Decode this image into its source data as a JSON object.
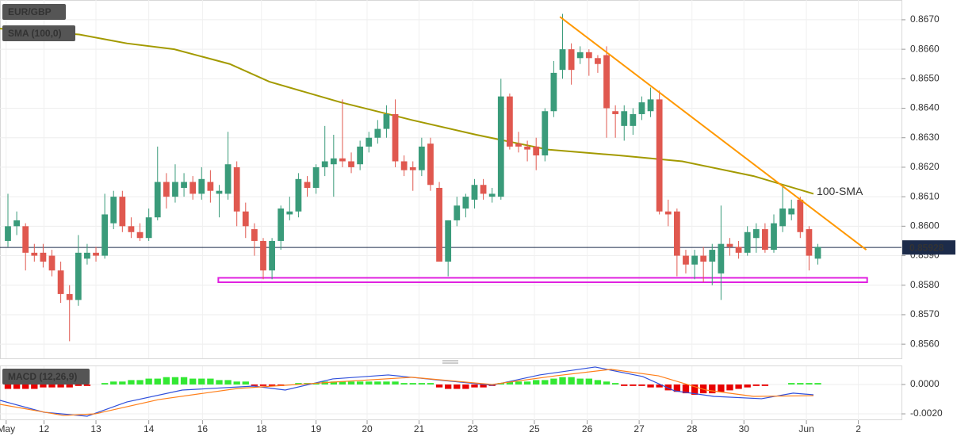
{
  "chart_data": [
    {
      "type": "candlestick",
      "title": "EUR/GBP",
      "indicator_label": "SMA (100,0)",
      "xlim": [
        -0.9,
        101.5
      ],
      "xticks": [
        {
          "value": -0.2,
          "label": "May"
        },
        {
          "value": 4.1,
          "label": "12"
        },
        {
          "value": 10.0,
          "label": "13"
        },
        {
          "value": 16.0,
          "label": "14"
        },
        {
          "value": 22.1,
          "label": "16"
        },
        {
          "value": 28.8,
          "label": "18"
        },
        {
          "value": 35.0,
          "label": "19"
        },
        {
          "value": 40.8,
          "label": "20"
        },
        {
          "value": 46.7,
          "label": "21"
        },
        {
          "value": 52.8,
          "label": "23"
        },
        {
          "value": 59.8,
          "label": "25"
        },
        {
          "value": 65.8,
          "label": "26"
        },
        {
          "value": 71.7,
          "label": "27"
        },
        {
          "value": 77.7,
          "label": "28"
        },
        {
          "value": 83.6,
          "label": "30"
        },
        {
          "value": 90.7,
          "label": "Jun"
        },
        {
          "value": 96.6,
          "label": "2"
        }
      ],
      "ylim": [
        0.85552,
        0.86767
      ],
      "yticks": [
        {
          "value": 0.856,
          "label": "0.8560"
        },
        {
          "value": 0.857,
          "label": "0.8570"
        },
        {
          "value": 0.858,
          "label": "0.8580"
        },
        {
          "value": 0.859,
          "label": "0.8590"
        },
        {
          "value": 0.86,
          "label": "0.8600"
        },
        {
          "value": 0.861,
          "label": "0.8610"
        },
        {
          "value": 0.862,
          "label": "0.8620"
        },
        {
          "value": 0.863,
          "label": "0.8630"
        },
        {
          "value": 0.864,
          "label": "0.8640"
        },
        {
          "value": 0.865,
          "label": "0.8650"
        },
        {
          "value": 0.866,
          "label": "0.8660"
        },
        {
          "value": 0.867,
          "label": "0.8670"
        }
      ],
      "grid": true,
      "up_color": "#3a9b7a",
      "down_color": "#e0584f",
      "open": [
        0.8595,
        0.86,
        0.86,
        0.8591,
        0.8591,
        0.859,
        0.8585,
        0.8577,
        0.8575,
        0.8589,
        0.8591,
        0.859,
        0.8601,
        0.861,
        0.86,
        0.8598,
        0.8596,
        0.8603,
        0.8615,
        0.861,
        0.8613,
        0.8615,
        0.8611,
        0.8615,
        0.8611,
        0.8611,
        0.862,
        0.8605,
        0.8599,
        0.8595,
        0.8585,
        0.8595,
        0.8604,
        0.8605,
        0.8615,
        0.8613,
        0.862,
        0.8621,
        0.8623,
        0.8622,
        0.8621,
        0.8627,
        0.863,
        0.8633,
        0.8638,
        0.8622,
        0.862,
        0.8619,
        0.8628,
        0.8613,
        0.8588,
        0.8602,
        0.8606,
        0.8609,
        0.8614,
        0.861,
        0.861,
        0.8644,
        0.8628,
        0.8627,
        0.8627,
        0.8624,
        0.8639,
        0.8653,
        0.866,
        0.8657,
        0.8659,
        0.8657,
        0.8658,
        0.8639,
        0.8634,
        0.8634,
        0.8638,
        0.8639,
        0.8643,
        0.8605,
        0.8605,
        0.859,
        0.8587,
        0.859,
        0.8588,
        0.8584,
        0.8594,
        0.8593,
        0.8591,
        0.8596,
        0.8599,
        0.8592,
        0.86,
        0.8604,
        0.8609,
        0.8599,
        0.8589
      ],
      "high": [
        0.8611,
        0.8605,
        0.8601,
        0.8594,
        0.8594,
        0.8592,
        0.8588,
        0.858,
        0.8597,
        0.8594,
        0.8593,
        0.8611,
        0.8612,
        0.8612,
        0.8603,
        0.8601,
        0.8606,
        0.8627,
        0.8618,
        0.8621,
        0.8618,
        0.8617,
        0.862,
        0.8619,
        0.8614,
        0.8632,
        0.8622,
        0.8608,
        0.8601,
        0.8596,
        0.8596,
        0.8607,
        0.861,
        0.8618,
        0.8617,
        0.8621,
        0.8634,
        0.8631,
        0.8643,
        0.8625,
        0.8629,
        0.8632,
        0.8636,
        0.8641,
        0.8643,
        0.8624,
        0.8622,
        0.863,
        0.863,
        0.8615,
        0.8602,
        0.861,
        0.8611,
        0.8616,
        0.8616,
        0.8613,
        0.865,
        0.8645,
        0.8632,
        0.8629,
        0.863,
        0.864,
        0.8656,
        0.8672,
        0.8662,
        0.8661,
        0.866,
        0.8658,
        0.8661,
        0.8641,
        0.8641,
        0.864,
        0.8644,
        0.8647,
        0.8646,
        0.8609,
        0.8606,
        0.8592,
        0.8592,
        0.8593,
        0.8594,
        0.8607,
        0.8596,
        0.8595,
        0.86,
        0.8601,
        0.8601,
        0.8604,
        0.8614,
        0.8609,
        0.861,
        0.86,
        0.8594
      ],
      "low": [
        0.8593,
        0.8597,
        0.8585,
        0.8588,
        0.8586,
        0.8583,
        0.8574,
        0.8561,
        0.8573,
        0.8587,
        0.8588,
        0.8589,
        0.8599,
        0.8598,
        0.8596,
        0.8595,
        0.8595,
        0.8602,
        0.8606,
        0.8608,
        0.861,
        0.8609,
        0.8609,
        0.8608,
        0.8603,
        0.8609,
        0.86,
        0.8596,
        0.859,
        0.8582,
        0.8582,
        0.8592,
        0.8602,
        0.8603,
        0.861,
        0.8611,
        0.8617,
        0.861,
        0.862,
        0.8618,
        0.8619,
        0.8625,
        0.8628,
        0.863,
        0.862,
        0.8617,
        0.8612,
        0.8617,
        0.8612,
        0.8588,
        0.8583,
        0.86,
        0.8603,
        0.8606,
        0.8609,
        0.8608,
        0.8609,
        0.8626,
        0.8625,
        0.8622,
        0.8619,
        0.8622,
        0.8637,
        0.865,
        0.8648,
        0.8655,
        0.8651,
        0.8652,
        0.863,
        0.863,
        0.8629,
        0.8631,
        0.8636,
        0.8637,
        0.8604,
        0.86,
        0.8583,
        0.8584,
        0.8582,
        0.8581,
        0.858,
        0.8575,
        0.859,
        0.8589,
        0.859,
        0.8591,
        0.8591,
        0.8591,
        0.8598,
        0.8602,
        0.8596,
        0.8585,
        0.8587
      ],
      "close": [
        0.86,
        0.8602,
        0.8591,
        0.859,
        0.8588,
        0.8585,
        0.8577,
        0.8575,
        0.8591,
        0.8591,
        0.859,
        0.8604,
        0.861,
        0.86,
        0.8598,
        0.8596,
        0.8603,
        0.8615,
        0.861,
        0.8615,
        0.8615,
        0.8611,
        0.8616,
        0.8612,
        0.8612,
        0.8621,
        0.8605,
        0.86,
        0.8595,
        0.8585,
        0.8595,
        0.8606,
        0.8605,
        0.8616,
        0.8613,
        0.862,
        0.8622,
        0.8623,
        0.8622,
        0.862,
        0.8627,
        0.863,
        0.8633,
        0.8638,
        0.8622,
        0.8619,
        0.8619,
        0.8627,
        0.8614,
        0.8588,
        0.8602,
        0.8607,
        0.861,
        0.8614,
        0.8611,
        0.8611,
        0.8644,
        0.8627,
        0.8627,
        0.8626,
        0.8624,
        0.8639,
        0.8652,
        0.866,
        0.8653,
        0.8659,
        0.8657,
        0.8655,
        0.864,
        0.8638,
        0.8639,
        0.8638,
        0.8642,
        0.8643,
        0.8605,
        0.8604,
        0.859,
        0.8587,
        0.859,
        0.8588,
        0.8592,
        0.8594,
        0.8593,
        0.8591,
        0.8598,
        0.8599,
        0.8592,
        0.8601,
        0.8606,
        0.8606,
        0.8598,
        0.859,
        0.8593
      ],
      "series": [
        {
          "name": "100-SMA",
          "color": "#a39a00",
          "label_color": "#3c9a2a",
          "x": [
            -0.9,
            8.1,
            13.5,
            18.9,
            25.2,
            29.7,
            37.8,
            45.9,
            53.2,
            61.3,
            69.4,
            76.6,
            84.7,
            91.5
          ],
          "values": [
            0.8667,
            0.8665,
            0.8662,
            0.866,
            0.8655,
            0.8649,
            0.8642,
            0.8636,
            0.8631,
            0.8626,
            0.8624,
            0.8622,
            0.8617,
            0.8611
          ]
        }
      ],
      "trendline": {
        "color": "#ff9800",
        "x": [
          62.7,
          97.5
        ],
        "values": [
          0.8671,
          0.8592
        ]
      },
      "support_zone": {
        "color": "#e020e0",
        "x": [
          23.9,
          97.6
        ],
        "values": [
          0.85825,
          0.8581
        ]
      },
      "last_price": 0.85928
    },
    {
      "type": "macd",
      "title": "MACD (12,26,9)",
      "ylim": [
        -0.00243,
        0.00124
      ],
      "yticks": [
        {
          "value": 0,
          "label": "0.0000"
        },
        {
          "value": -0.002,
          "label": "-0.0020"
        }
      ],
      "up_color": "#33e833",
      "down_color": "#e80000",
      "histogram": [
        -0.0003,
        -0.0003,
        -0.0003,
        -0.0003,
        -0.0002,
        -0.0002,
        -0.0002,
        -0.0002,
        -0.0001,
        -0.0001,
        0,
        0.0001,
        0.0002,
        0.0002,
        0.0003,
        0.0003,
        0.0004,
        0.0004,
        0.0005,
        0.0005,
        0.0005,
        0.0004,
        0.0004,
        0.0004,
        0.0003,
        0.0003,
        0.0002,
        0.0002,
        -0.0001,
        -0.0001,
        -0.0001,
        -0.0001,
        0,
        0.0001,
        0.0001,
        0.0001,
        0.0002,
        0.0002,
        0.0002,
        0.0002,
        0.0002,
        0.0002,
        0.0002,
        0.0002,
        0.0002,
        0.0001,
        0.0001,
        0.0001,
        0.0001,
        -0.0002,
        -0.0003,
        -0.0003,
        -0.0003,
        -0.0002,
        -0.0002,
        -0.0001,
        0.0001,
        0.0002,
        0.0002,
        0.0002,
        0.0003,
        0.0003,
        0.0004,
        0.0005,
        0.0005,
        0.0004,
        0.0004,
        0.0003,
        0.0002,
        0.0001,
        -0.0001,
        -0.0001,
        -0.0001,
        -0.0002,
        -0.0002,
        -0.0004,
        -0.0005,
        -0.0006,
        -0.0007,
        -0.0006,
        -0.0006,
        -0.0005,
        -0.0004,
        -0.0003,
        -0.0002,
        -0.0001,
        -0.0001,
        0,
        0,
        0.0001,
        0.0001,
        0.0001,
        0.0001
      ],
      "series": [
        {
          "color": "#2f4fdb",
          "x": [
            -0.9,
            4.1,
            9.0,
            13.5,
            19.8,
            27.9,
            31.5,
            36.9,
            43.2,
            48.6,
            55.0,
            60.4,
            66.7,
            72.1,
            75.7,
            80.2,
            85.6,
            89.2,
            91.5
          ],
          "values": [
            -0.00108,
            -0.00189,
            -0.00216,
            -0.00119,
            -0.00038,
            -0.00011,
            -0.00038,
            0.00038,
            0.00065,
            0.00032,
            -5e-05,
            0.00065,
            0.00119,
            0.00054,
            -0.00043,
            -0.00081,
            -0.00097,
            -0.00059,
            -0.0007
          ]
        },
        {
          "color": "#ff7f1a",
          "x": [
            -0.9,
            6.3,
            9.9,
            17.1,
            26.1,
            36.9,
            45.9,
            55.0,
            62.2,
            68.5,
            73.9,
            79.3,
            84.7,
            91.5
          ],
          "values": [
            -0.00135,
            -0.00211,
            -0.002,
            -0.00103,
            -0.00027,
            0.00016,
            0.00049,
            0,
            0.00059,
            0.00103,
            0.00059,
            -0.00038,
            -0.00081,
            -0.00076
          ]
        }
      ]
    }
  ]
}
